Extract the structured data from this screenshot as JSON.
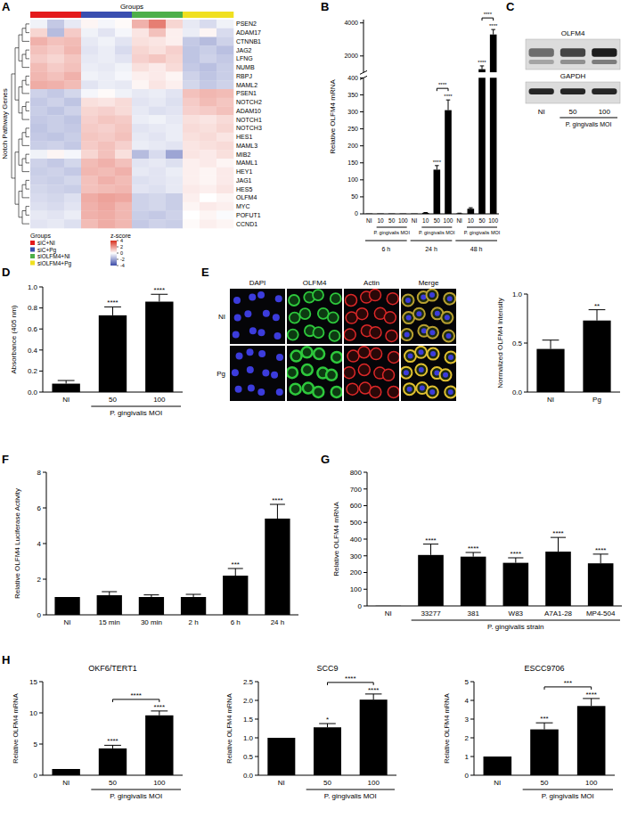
{
  "chart_data": [
    {
      "panel": "A",
      "type": "heatmap",
      "title": "Groups",
      "ylabel": "Notch Pathway Genes",
      "rows": [
        "PSEN2",
        "ADAM17",
        "CTNNB1",
        "JAG2",
        "LFNG",
        "NUMB",
        "RBPJ",
        "MAML2",
        "PSEN1",
        "NOTCH2",
        "ADAM10",
        "NOTCH1",
        "NOTCH3",
        "HES1",
        "MAML3",
        "MIB2",
        "MAML1",
        "HEY1",
        "JAG1",
        "HES5",
        "OLFM4",
        "MYC",
        "POFUT1",
        "CCND1"
      ],
      "groups": [
        {
          "name": "siC+NI",
          "color": "#e41a1c"
        },
        {
          "name": "siC+Pg",
          "color": "#3a4fb0"
        },
        {
          "name": "siOLFM4+NI",
          "color": "#4daf4a"
        },
        {
          "name": "siOLFM4+Pg",
          "color": "#f0e020"
        }
      ],
      "column_groups": [
        "siC+NI",
        "siC+NI",
        "siC+NI",
        "siC+Pg",
        "siC+Pg",
        "siC+Pg",
        "siOLFM4+NI",
        "siOLFM4+NI",
        "siOLFM4+NI",
        "siOLFM4+Pg",
        "siOLFM4+Pg",
        "siOLFM4+Pg"
      ],
      "legend_title": "Groups",
      "cells": [
        [
          -0.3,
          -1.2,
          -0.5,
          0.2,
          -0.2,
          0.1,
          1.5,
          2.5,
          0.8,
          -0.5,
          -0.8,
          -0.3
        ],
        [
          0.8,
          -1.5,
          1.0,
          -0.3,
          -0.6,
          -0.2,
          0.5,
          1.2,
          0.3,
          -0.4,
          0.2,
          -0.8
        ],
        [
          1.5,
          1.2,
          1.3,
          -0.5,
          -0.3,
          -0.6,
          0.6,
          0.5,
          0.3,
          -1.2,
          -1.5,
          -1.0
        ],
        [
          1.2,
          1.0,
          1.4,
          -0.6,
          -0.4,
          -0.8,
          0.8,
          0.6,
          0.9,
          -1.3,
          -1.1,
          -1.4
        ],
        [
          1.0,
          0.8,
          1.1,
          -0.5,
          -0.4,
          -0.6,
          0.9,
          1.1,
          0.8,
          -1.3,
          -1.0,
          -1.2
        ],
        [
          1.3,
          1.0,
          1.2,
          -0.4,
          -0.5,
          -0.3,
          0.6,
          0.4,
          0.7,
          -1.2,
          -1.4,
          -1.1
        ],
        [
          1.4,
          1.2,
          1.5,
          -0.3,
          -0.4,
          -0.2,
          0.3,
          0.4,
          0.2,
          -1.0,
          -1.3,
          -1.1
        ],
        [
          1.6,
          1.5,
          1.3,
          -0.6,
          -0.4,
          -0.5,
          0.2,
          0.5,
          0.3,
          -0.9,
          -1.2,
          -1.0
        ],
        [
          -1.0,
          -1.2,
          -0.9,
          -0.2,
          0.1,
          -0.3,
          -0.5,
          -0.4,
          -0.6,
          1.2,
          1.4,
          1.3
        ],
        [
          -1.2,
          -1.0,
          -1.3,
          0.6,
          0.5,
          0.7,
          -0.6,
          -0.5,
          -0.7,
          1.0,
          1.3,
          1.1
        ],
        [
          -1.1,
          -1.3,
          -1.0,
          0.8,
          0.9,
          0.7,
          -0.5,
          -0.7,
          -0.6,
          0.9,
          1.0,
          1.2
        ],
        [
          -1.2,
          -1.1,
          -1.3,
          0.9,
          1.1,
          1.0,
          -0.4,
          -0.3,
          -0.5,
          0.6,
          0.5,
          0.7
        ],
        [
          -1.3,
          -1.1,
          -1.2,
          1.0,
          0.9,
          1.1,
          -0.6,
          -0.5,
          -0.4,
          0.7,
          0.6,
          0.8
        ],
        [
          -1.2,
          -1.3,
          -1.1,
          1.1,
          1.0,
          1.2,
          -0.5,
          -0.6,
          -0.4,
          0.6,
          0.7,
          0.5
        ],
        [
          -1.1,
          -1.0,
          -1.2,
          1.0,
          1.2,
          0.9,
          -0.4,
          -0.5,
          -0.6,
          0.5,
          0.6,
          0.7
        ],
        [
          -0.3,
          0.2,
          -0.2,
          0.8,
          1.2,
          0.6,
          -1.5,
          -0.8,
          -2.0,
          0.5,
          0.4,
          0.6
        ],
        [
          -1.0,
          -1.2,
          -0.9,
          1.3,
          1.5,
          1.2,
          -0.6,
          -0.5,
          -0.7,
          0.3,
          0.4,
          0.2
        ],
        [
          -1.1,
          -1.0,
          -1.2,
          1.4,
          1.3,
          1.5,
          -0.5,
          -0.6,
          -0.4,
          0.3,
          0.2,
          0.4
        ],
        [
          -1.0,
          -1.1,
          -0.9,
          1.2,
          1.5,
          1.3,
          -0.7,
          -0.6,
          -0.5,
          0.3,
          0.2,
          0.4
        ],
        [
          -0.9,
          -1.0,
          -1.1,
          1.2,
          1.3,
          1.4,
          -0.6,
          -0.7,
          -0.5,
          0.4,
          0.3,
          0.5
        ],
        [
          -0.8,
          -0.9,
          -0.7,
          1.6,
          1.8,
          1.7,
          -1.0,
          -0.9,
          -1.1,
          0.3,
          0.0,
          0.2
        ],
        [
          -0.7,
          -0.8,
          -0.6,
          1.5,
          1.7,
          1.4,
          -1.0,
          -0.9,
          -1.1,
          0.2,
          0.4,
          0.3
        ],
        [
          -0.5,
          -0.6,
          -0.4,
          1.5,
          1.6,
          1.4,
          -1.1,
          -1.2,
          -1.0,
          0.0,
          0.2,
          -0.1
        ],
        [
          -0.6,
          -0.5,
          -0.7,
          1.3,
          1.6,
          1.4,
          -1.2,
          -1.0,
          -1.1,
          0.1,
          0.3,
          0.2
        ]
      ],
      "colorbar": {
        "title": "z-score",
        "range": [
          -4,
          4
        ],
        "ticks": [
          4,
          2,
          0,
          -2,
          -4
        ],
        "colors": [
          "#3b4ba8",
          "#ffffff",
          "#d7301f"
        ]
      }
    },
    {
      "panel": "B",
      "type": "bar",
      "ylabel": "Relative OLFM4 mRNA",
      "xlabel": "P. gingivalis MOI",
      "color": "#000000",
      "categories": [
        "NI",
        "10",
        "50",
        "100",
        "NI",
        "10",
        "50",
        "100",
        "NI",
        "10",
        "50",
        "100"
      ],
      "groups": [
        "6 h",
        "24 h",
        "48 h"
      ],
      "values": [
        1,
        1,
        1,
        1,
        1,
        3,
        130,
        305,
        1,
        15,
        1200,
        3300
      ],
      "errors": [
        null,
        null,
        null,
        null,
        null,
        1,
        12,
        30,
        1,
        3,
        200,
        300
      ],
      "stars": [
        null,
        null,
        null,
        null,
        null,
        null,
        "****",
        "****",
        null,
        null,
        "****",
        "****"
      ],
      "comparisons": [
        {
          "from": 6,
          "to": 7,
          "label": "****"
        },
        {
          "from": 10,
          "to": 11,
          "label": "****"
        }
      ],
      "y_segments": [
        {
          "ylim": [
            0,
            400
          ],
          "yticks": [
            0,
            50,
            100,
            150,
            200,
            250,
            300,
            350,
            400
          ]
        },
        {
          "ylim": [
            1000,
            4200
          ],
          "yticks": [
            2000,
            4000
          ]
        }
      ]
    },
    {
      "panel": "D",
      "type": "bar",
      "ylabel": "Absorbance (405 nm)",
      "xlabel": "P. gingivalis MOI",
      "color": "#000000",
      "categories": [
        "NI",
        "50",
        "100"
      ],
      "values": [
        0.08,
        0.73,
        0.86
      ],
      "errors": [
        0.03,
        0.08,
        0.07
      ],
      "stars": [
        null,
        "****",
        "****"
      ],
      "ylim": [
        0,
        1
      ],
      "yticks": [
        {
          "value": 0,
          "label": "0.0"
        },
        0.2,
        0.4,
        0.6,
        0.8,
        {
          "value": 1,
          "label": "1.0"
        }
      ]
    },
    {
      "type": "bar",
      "ylabel": "Normalized OLFM4 Intensity",
      "color": "#000000",
      "categories": [
        "NI",
        "Pg"
      ],
      "values": [
        0.44,
        0.73
      ],
      "errors": [
        0.09,
        0.11
      ],
      "stars": [
        null,
        "**"
      ],
      "ylim": [
        0,
        1
      ],
      "yticks": [
        {
          "value": 0,
          "label": "0.0"
        },
        0.5,
        {
          "value": 1,
          "label": "1.0"
        }
      ]
    },
    {
      "panel": "F",
      "type": "bar",
      "ylabel": "Relative OLFM4 Luciferase Activity",
      "color": "#000000",
      "categories": [
        "NI",
        "15 min",
        "30 min",
        "2 h",
        "6 h",
        "24 h"
      ],
      "values": [
        1,
        1.1,
        1.0,
        1.0,
        2.2,
        5.4
      ],
      "errors": [
        null,
        0.2,
        0.12,
        0.15,
        0.4,
        0.8
      ],
      "stars": [
        null,
        null,
        null,
        null,
        "***",
        "****"
      ],
      "ylim": [
        0,
        8
      ],
      "yticks": [
        0,
        2,
        4,
        6,
        8
      ]
    },
    {
      "panel": "G",
      "type": "bar",
      "ylabel": "Relative OLFM4 mRNA",
      "xlabel": "P. gingivalis strain",
      "color": "#000000",
      "categories": [
        "NI",
        "33277",
        "381",
        "W83",
        "A7A1-28",
        "MP4-504"
      ],
      "values": [
        1,
        305,
        295,
        258,
        325,
        255
      ],
      "errors": [
        null,
        65,
        25,
        30,
        85,
        55
      ],
      "stars": [
        null,
        "****",
        "****",
        "****",
        "****",
        "****"
      ],
      "ylim": [
        0,
        800
      ],
      "yticks": [
        0,
        100,
        200,
        300,
        400,
        500,
        600,
        700,
        800
      ]
    },
    {
      "panel": "H",
      "type": "bar",
      "title": "OKF6/TERT1",
      "ylabel": "Relative OLFM4 mRNA",
      "xlabel": "P. gingivalis MOI",
      "color": "#000000",
      "categories": [
        "NI",
        "50",
        "100"
      ],
      "values": [
        1,
        4.3,
        9.6
      ],
      "errors": [
        null,
        0.5,
        0.7
      ],
      "stars": [
        null,
        "****",
        "****"
      ],
      "comparisons": [
        {
          "from": 1,
          "to": 2,
          "label": "****"
        }
      ],
      "ylim": [
        0,
        15
      ],
      "yticks": [
        0,
        5,
        10,
        15
      ]
    },
    {
      "type": "bar",
      "title": "SCC9",
      "ylabel": "Relative OLFM4 mRNA",
      "xlabel": "P. gingivalis MOI",
      "color": "#000000",
      "categories": [
        "NI",
        "50",
        "100"
      ],
      "values": [
        1,
        1.28,
        2.02
      ],
      "errors": [
        null,
        0.1,
        0.15
      ],
      "stars": [
        null,
        "*",
        "****"
      ],
      "comparisons": [
        {
          "from": 1,
          "to": 2,
          "label": "****"
        }
      ],
      "ylim": [
        0,
        2.5
      ],
      "yticks": [
        {
          "value": 0,
          "label": "0.0"
        },
        0.5,
        {
          "value": 1,
          "label": "1.0"
        },
        1.5,
        {
          "value": 2,
          "label": "2.0"
        },
        2.5
      ]
    },
    {
      "type": "bar",
      "title": "ESCC9706",
      "ylabel": "Relative OLFM4 mRNA",
      "xlabel": "P. gingivalis MOI",
      "color": "#000000",
      "categories": [
        "NI",
        "50",
        "100"
      ],
      "values": [
        1,
        2.45,
        3.7
      ],
      "errors": [
        null,
        0.35,
        0.4
      ],
      "stars": [
        null,
        "***",
        "****"
      ],
      "comparisons": [
        {
          "from": 1,
          "to": 2,
          "label": "***"
        }
      ],
      "ylim": [
        0,
        5
      ],
      "yticks": [
        0,
        1,
        2,
        3,
        4,
        5
      ]
    }
  ],
  "blot": {
    "panel": "C",
    "proteins": [
      "OLFM4",
      "GAPDH"
    ],
    "lanes": [
      "NI",
      "50",
      "100"
    ],
    "xlabel": "P. gingivalis MOI"
  },
  "micrographs": {
    "panel": "E",
    "columns": [
      "DAPI",
      "OLFM4",
      "Actin",
      "Merge"
    ],
    "rows": [
      "NI",
      "Pg"
    ]
  }
}
